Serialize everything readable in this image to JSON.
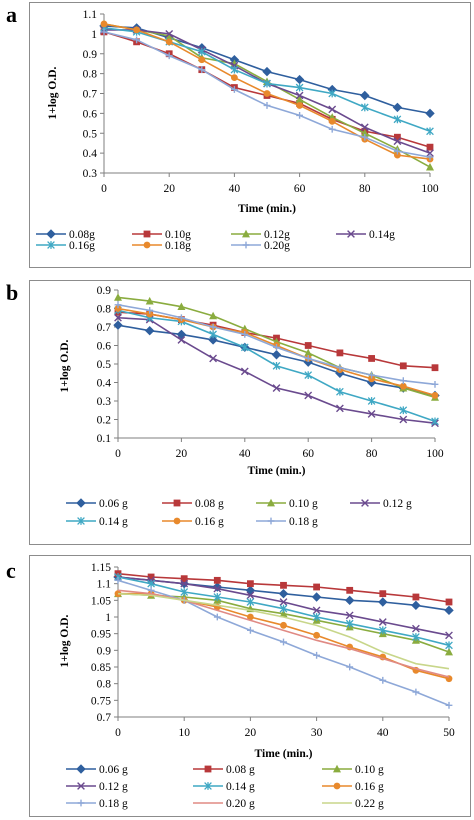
{
  "panels": [
    "a",
    "b",
    "c"
  ],
  "chart_data": [
    {
      "type": "line",
      "panel": "a",
      "xlabel": "Time (min.)",
      "ylabel": "1+log O.D.",
      "xlim": [
        0,
        100
      ],
      "ylim": [
        0.3,
        1.1
      ],
      "xticks": [
        "0",
        "20",
        "40",
        "60",
        "80",
        "100"
      ],
      "yticks": [
        "0.3",
        "0.4",
        "0.5",
        "0.6",
        "0.7",
        "0.8",
        "0.9",
        "1",
        "1.1"
      ],
      "x": [
        0,
        10,
        20,
        30,
        40,
        50,
        60,
        70,
        80,
        90,
        100
      ],
      "legend_position": "bottom",
      "series": [
        {
          "name": "0.08g",
          "color": "#2f5f9e",
          "marker": "diamond",
          "values": [
            1.04,
            1.03,
            0.98,
            0.93,
            0.87,
            0.81,
            0.77,
            0.72,
            0.69,
            0.63,
            0.6
          ]
        },
        {
          "name": "0.10g",
          "color": "#b8383a",
          "marker": "square",
          "values": [
            1.01,
            0.96,
            0.9,
            0.82,
            0.73,
            0.69,
            0.65,
            0.57,
            0.51,
            0.48,
            0.43
          ]
        },
        {
          "name": "0.12g",
          "color": "#8aac3f",
          "marker": "triangle",
          "values": [
            1.05,
            1.02,
            0.99,
            0.88,
            0.85,
            0.76,
            0.67,
            0.58,
            0.5,
            0.42,
            0.33
          ]
        },
        {
          "name": "0.14g",
          "color": "#6a4a8e",
          "marker": "x",
          "values": [
            1.02,
            1.02,
            1.0,
            0.92,
            0.84,
            0.75,
            0.69,
            0.62,
            0.53,
            0.46,
            0.4
          ]
        },
        {
          "name": "0.16g",
          "color": "#3fa8c4",
          "marker": "star",
          "values": [
            1.03,
            1.01,
            0.96,
            0.91,
            0.82,
            0.75,
            0.73,
            0.7,
            0.63,
            0.57,
            0.51
          ]
        },
        {
          "name": "0.18g",
          "color": "#e8892c",
          "marker": "circle",
          "values": [
            1.05,
            1.02,
            0.96,
            0.87,
            0.78,
            0.7,
            0.64,
            0.56,
            0.47,
            0.39,
            0.37
          ]
        },
        {
          "name": "0.20g",
          "color": "#8ea8d8",
          "marker": "plus",
          "values": [
            1.01,
            0.97,
            0.89,
            0.82,
            0.72,
            0.64,
            0.59,
            0.52,
            0.48,
            0.41,
            0.38
          ]
        }
      ]
    },
    {
      "type": "line",
      "panel": "b",
      "xlabel": "Time (min.)",
      "ylabel": "1+log O.D.",
      "xlim": [
        0,
        100
      ],
      "ylim": [
        0.1,
        0.9
      ],
      "xticks": [
        "0",
        "20",
        "40",
        "60",
        "80",
        "100"
      ],
      "yticks": [
        "0.1",
        "0.2",
        "0.3",
        "0.4",
        "0.5",
        "0.6",
        "0.7",
        "0.8",
        "0.9"
      ],
      "x": [
        0,
        10,
        20,
        30,
        40,
        50,
        60,
        70,
        80,
        90,
        100
      ],
      "legend_position": "bottom",
      "series": [
        {
          "name": "0.06 g",
          "color": "#2f5f9e",
          "marker": "diamond",
          "values": [
            0.71,
            0.68,
            0.66,
            0.63,
            0.59,
            0.55,
            0.51,
            0.45,
            0.4,
            0.37,
            0.33
          ]
        },
        {
          "name": "0.08 g",
          "color": "#b8383a",
          "marker": "square",
          "values": [
            0.78,
            0.77,
            0.74,
            0.71,
            0.67,
            0.64,
            0.6,
            0.56,
            0.53,
            0.49,
            0.48
          ]
        },
        {
          "name": "0.10 g",
          "color": "#8aac3f",
          "marker": "triangle",
          "values": [
            0.86,
            0.84,
            0.81,
            0.76,
            0.69,
            0.62,
            0.56,
            0.48,
            0.44,
            0.37,
            0.32
          ]
        },
        {
          "name": "0.12 g",
          "color": "#6a4a8e",
          "marker": "x",
          "values": [
            0.75,
            0.74,
            0.63,
            0.53,
            0.46,
            0.37,
            0.33,
            0.26,
            0.23,
            0.2,
            0.18
          ]
        },
        {
          "name": "0.14 g",
          "color": "#3fa8c4",
          "marker": "star",
          "values": [
            0.79,
            0.75,
            0.73,
            0.66,
            0.59,
            0.49,
            0.44,
            0.35,
            0.3,
            0.25,
            0.19
          ]
        },
        {
          "name": "0.16 g",
          "color": "#e8892c",
          "marker": "circle",
          "values": [
            0.8,
            0.77,
            0.74,
            0.7,
            0.67,
            0.6,
            0.53,
            0.47,
            0.42,
            0.38,
            0.33
          ]
        },
        {
          "name": "0.18 g",
          "color": "#8ea8d8",
          "marker": "plus",
          "values": [
            0.82,
            0.79,
            0.75,
            0.7,
            0.66,
            0.59,
            0.53,
            0.48,
            0.44,
            0.41,
            0.39
          ]
        }
      ]
    },
    {
      "type": "line",
      "panel": "c",
      "xlabel": "Time (min.)",
      "ylabel": "1+log O.D.",
      "xlim": [
        0,
        50
      ],
      "ylim": [
        0.7,
        1.15
      ],
      "xticks": [
        "0",
        "10",
        "20",
        "30",
        "40",
        "50"
      ],
      "yticks": [
        "0.7",
        "0.75",
        "0.8",
        "0.85",
        "0.9",
        "0.95",
        "1",
        "1.05",
        "1.1",
        "1.15"
      ],
      "x": [
        0,
        5,
        10,
        15,
        20,
        25,
        30,
        35,
        40,
        45,
        50
      ],
      "legend_position": "bottom",
      "series": [
        {
          "name": "0.06 g",
          "color": "#2f5f9e",
          "marker": "diamond",
          "values": [
            1.12,
            1.11,
            1.1,
            1.09,
            1.08,
            1.07,
            1.06,
            1.05,
            1.045,
            1.035,
            1.02
          ]
        },
        {
          "name": "0.08 g",
          "color": "#b8383a",
          "marker": "square",
          "values": [
            1.13,
            1.12,
            1.115,
            1.11,
            1.1,
            1.095,
            1.09,
            1.08,
            1.07,
            1.06,
            1.045
          ]
        },
        {
          "name": "0.10 g",
          "color": "#8aac3f",
          "marker": "triangle",
          "values": [
            1.07,
            1.065,
            1.06,
            1.05,
            1.025,
            1.01,
            0.99,
            0.97,
            0.95,
            0.93,
            0.895
          ]
        },
        {
          "name": "0.12 g",
          "color": "#6a4a8e",
          "marker": "x",
          "values": [
            1.12,
            1.11,
            1.1,
            1.085,
            1.065,
            1.045,
            1.02,
            1.005,
            0.985,
            0.965,
            0.945
          ]
        },
        {
          "name": "0.14 g",
          "color": "#3fa8c4",
          "marker": "star",
          "values": [
            1.12,
            1.1,
            1.075,
            1.06,
            1.045,
            1.025,
            1.0,
            0.98,
            0.96,
            0.94,
            0.915
          ]
        },
        {
          "name": "0.16 g",
          "color": "#e8892c",
          "marker": "circle",
          "values": [
            1.07,
            1.07,
            1.05,
            1.03,
            1.0,
            0.975,
            0.945,
            0.91,
            0.88,
            0.84,
            0.815
          ]
        },
        {
          "name": "0.18 g",
          "color": "#8ea8d8",
          "marker": "plus",
          "values": [
            1.11,
            1.08,
            1.05,
            1.0,
            0.96,
            0.925,
            0.885,
            0.85,
            0.81,
            0.775,
            0.735
          ]
        },
        {
          "name": "0.20 g",
          "color": "#e08a84",
          "marker": "none",
          "values": [
            1.08,
            1.07,
            1.05,
            1.02,
            0.99,
            0.96,
            0.93,
            0.905,
            0.875,
            0.845,
            0.82
          ]
        },
        {
          "name": "0.22 g",
          "color": "#c8d68a",
          "marker": "none",
          "values": [
            1.07,
            1.065,
            1.05,
            1.035,
            1.02,
            1.0,
            0.975,
            0.94,
            0.895,
            0.86,
            0.845
          ]
        }
      ]
    }
  ]
}
